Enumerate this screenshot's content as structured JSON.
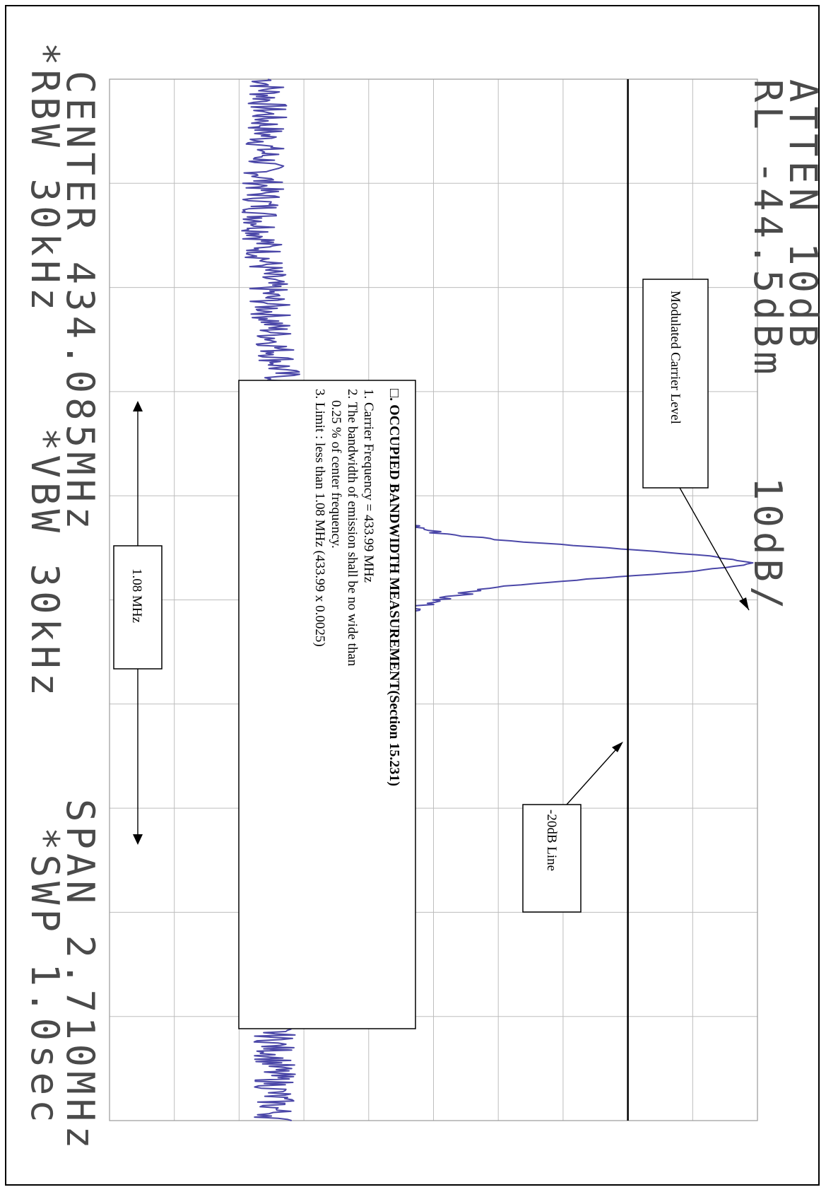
{
  "chart_data": {
    "type": "line",
    "title": "",
    "orientation": "rotated-90-clockwise",
    "header": {
      "atten": "ATTEN 10dB",
      "rl": "RL -44.5dBm",
      "scale": "10dB/"
    },
    "footer": {
      "center": "CENTER 434.085MHz",
      "span": "SPAN 2.710MHz",
      "rbw": "*RBW 30kHz",
      "vbw": "*VBW 30kHz",
      "swp": "*SWP 1.0sec"
    },
    "center_freq_mhz": 434.085,
    "span_mhz": 2.71,
    "reference_level_dbm": -44.5,
    "scale_db_per_div": 10,
    "xlim_mhz": [
      432.73,
      435.44
    ],
    "ylim_dbm": [
      -144.5,
      -44.5
    ],
    "grid": true,
    "grid_divisions": [
      10,
      10
    ],
    "series": [
      {
        "color": "#4b47a8",
        "x": [
          432.73,
          432.9,
          433.1,
          433.3,
          433.5,
          433.6,
          433.7,
          433.75,
          433.8,
          433.85,
          433.88,
          433.91,
          433.93,
          433.95,
          433.97,
          433.99,
          434.01,
          434.03,
          434.05,
          434.08,
          434.12,
          434.2,
          434.3,
          434.45,
          434.6,
          434.8,
          435.0,
          435.2,
          435.44
        ],
        "y": [
          -120,
          -120.5,
          -121,
          -120,
          -118,
          -116,
          -112,
          -110,
          -108,
          -104,
          -100,
          -94,
          -84,
          -67,
          -52,
          -45,
          -54,
          -70,
          -84,
          -93,
          -99,
          -105,
          -110,
          -114,
          -116,
          -118,
          -119,
          -119,
          -119
        ]
      }
    ],
    "reference_line": {
      "label": "-20dB Line",
      "y": -64.5
    },
    "annotations": {
      "carrier_label": "Modulated Carrier Level",
      "bandwidth_label": "1.08 MHz",
      "bandwidth_mhz": 1.08,
      "measurement_box": {
        "title": "□. OCCUPIED BANDWIDTH MEASUREMENT(Section 15.231)",
        "line1": "1. Carrier Frequency = 433.99 MHz",
        "line2a": "2. The bandwidth of emission shall be no wide than",
        "line2b": "0.25 % of center frequency.",
        "line3": "3. Limit : less than 1.08 MHz (433.99 x 0.0025)"
      }
    }
  }
}
